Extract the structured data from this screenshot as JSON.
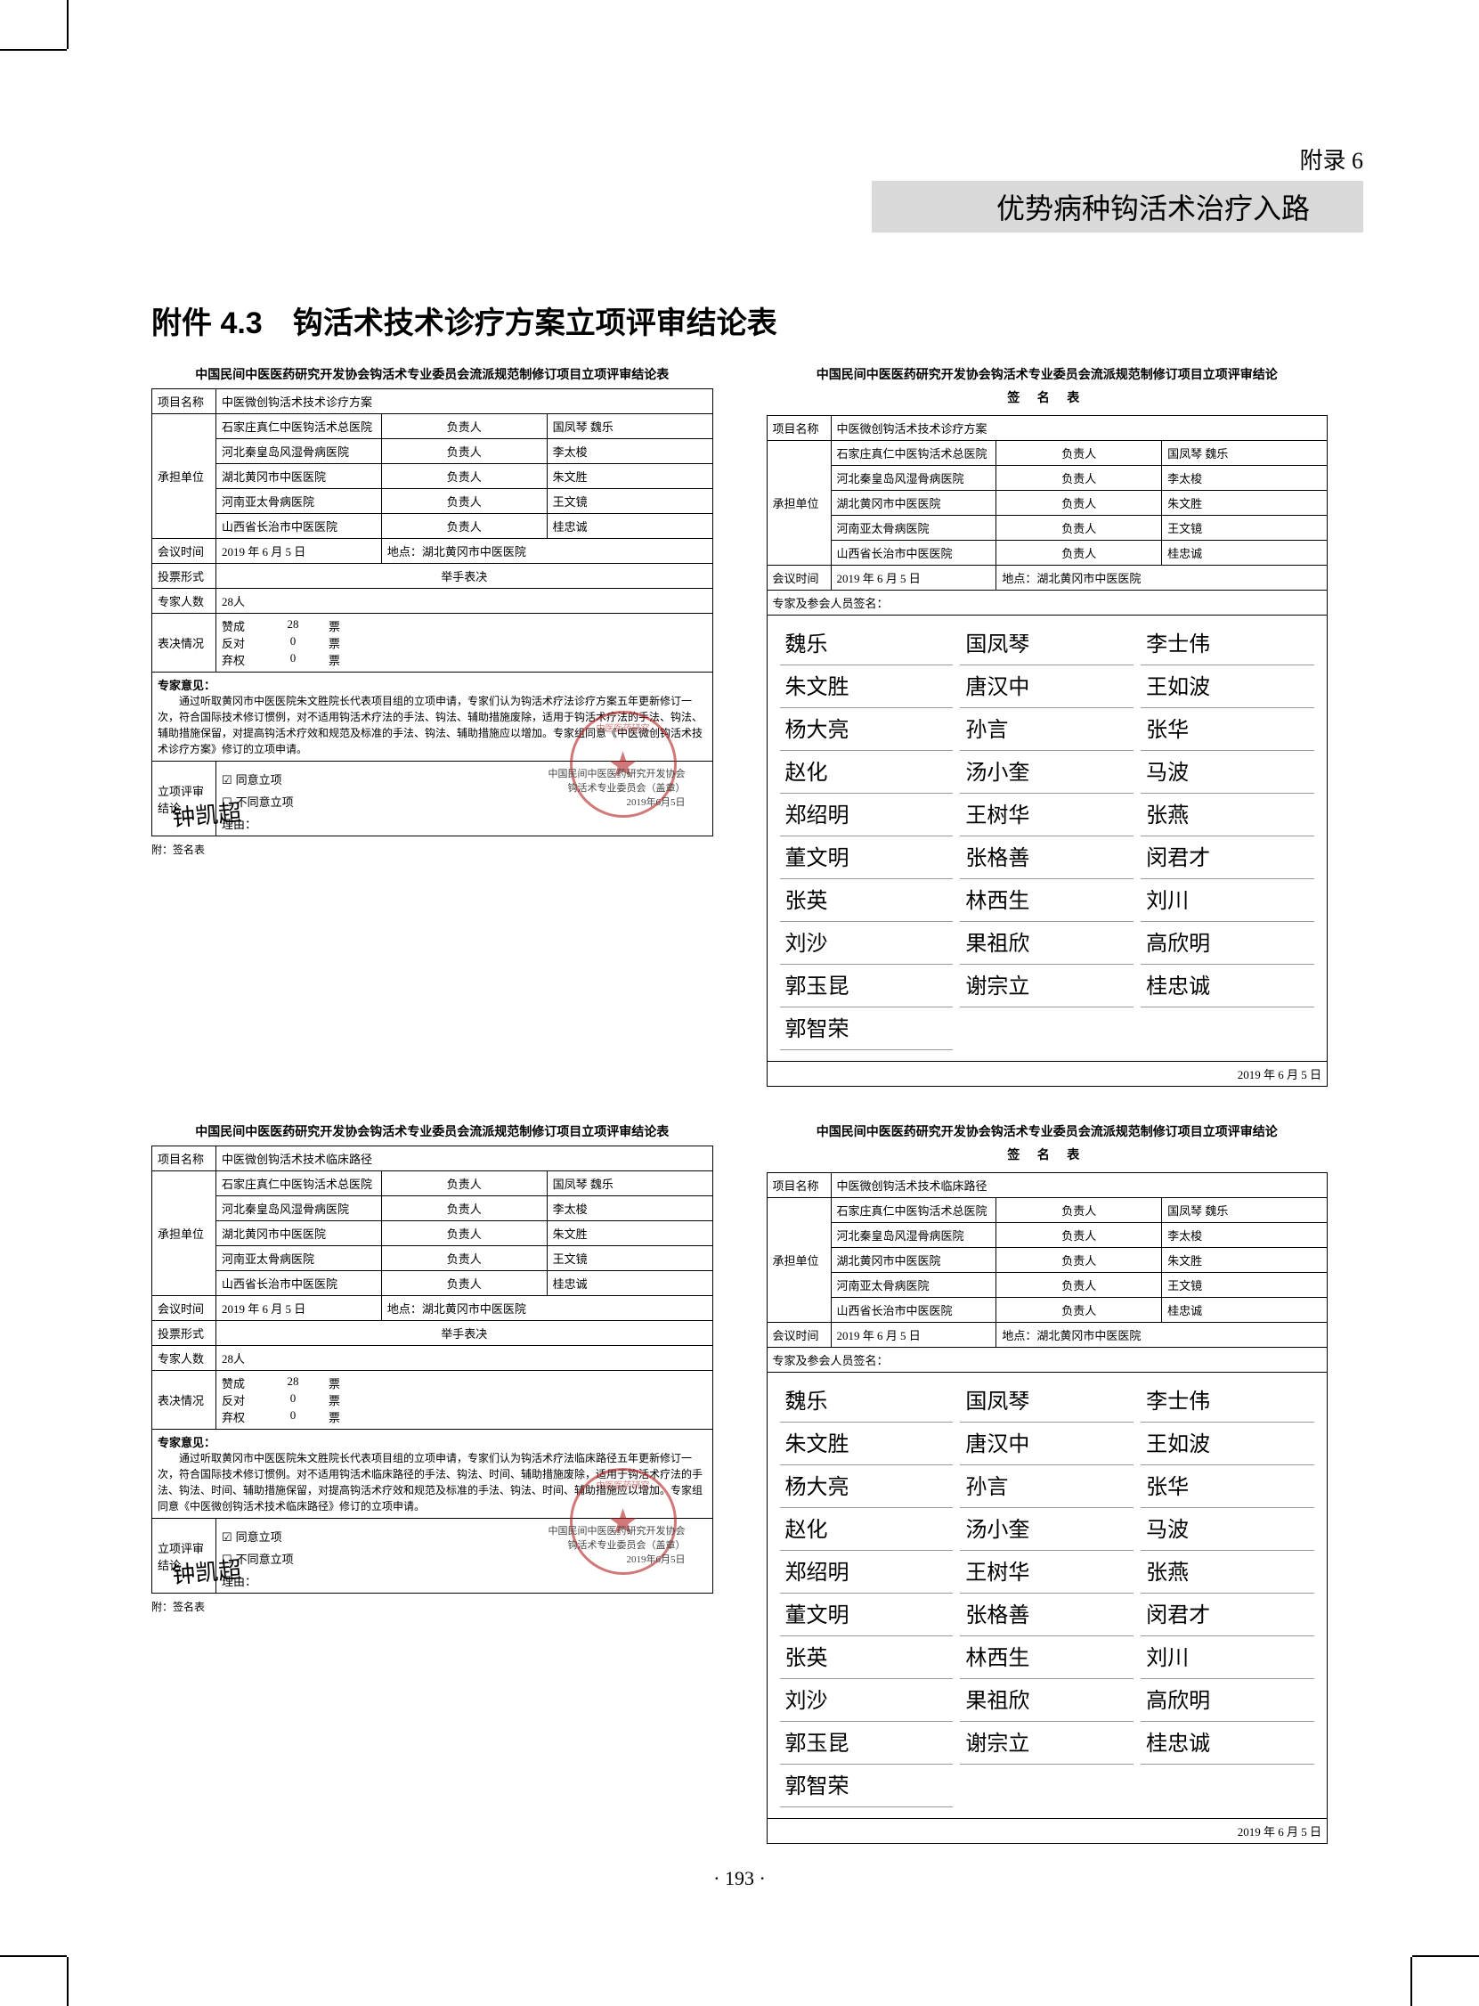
{
  "header": {
    "appendix_num": "附录 6",
    "appendix_title": "优势病种钩活术治疗入路"
  },
  "section_title": "附件 4.3　钩活术技术诊疗方案立项评审结论表",
  "form1": {
    "title": "中国民间中医医药研究开发协会钩活术专业委员会流派规范制修订项目立项评审结论表",
    "labels": {
      "project": "项目名称",
      "units": "承担单位",
      "meeting": "会议时间",
      "votemode": "投票形式",
      "experts": "专家人数",
      "voteresult": "表决情况",
      "opinion": "专家意见：",
      "conclusion": "立项评审结论"
    },
    "project_name": "中医微创钩活术技术诊疗方案",
    "units": [
      {
        "org": "石家庄真仁中医钩活术总医院",
        "pl": "负责人",
        "person": "国凤琴 魏乐"
      },
      {
        "org": "河北秦皇岛风湿骨病医院",
        "pl": "负责人",
        "person": "李太梭"
      },
      {
        "org": "湖北黄冈市中医医院",
        "pl": "负责人",
        "person": "朱文胜"
      },
      {
        "org": "河南亚太骨病医院",
        "pl": "负责人",
        "person": "王文镜"
      },
      {
        "org": "山西省长治市中医医院",
        "pl": "负责人",
        "person": "桂忠诚"
      }
    ],
    "meeting_date": "2019 年 6 月 5 日",
    "meeting_loc_label": "地点：",
    "meeting_loc": "湖北黄冈市中医医院",
    "vote_mode": "举手表决",
    "expert_count": "28人",
    "vote_rows": [
      {
        "k": "赞成",
        "v": "28",
        "u": "票"
      },
      {
        "k": "反对",
        "v": "0",
        "u": "票"
      },
      {
        "k": "弃权",
        "v": "0",
        "u": "票"
      }
    ],
    "opinion": "通过听取黄冈市中医医院朱文胜院长代表项目组的立项申请，专家们认为钩活术疗法诊疗方案五年更新修订一次，符合国际技术修订惯例，对不适用钩活术疗法的手法、钩法、辅助措施废除，适用于钩活术疗法的手法、钩法、辅助措施保留，对提高钩活术疗效和规范及标准的手法、钩法、辅助措施应以增加。专家组同意《中医微创钩活术技术诊疗方案》修订的立项申请。",
    "checkbox_agree": "同意立项",
    "checkbox_disagree": "不同意立项",
    "reason_label": "理由：",
    "org_line1": "中国民间中医医药研究开发协会",
    "org_line2": "钩活术专业委员会（盖章）",
    "org_line3": "2019年6月5日",
    "foot": "附：签名表"
  },
  "form2": {
    "title": "中国民间中医医药研究开发协会钩活术专业委员会流派规范制修订项目立项评审结论",
    "subtitle": "签 名 表",
    "labels": {
      "project": "项目名称",
      "units": "承担单位",
      "meeting": "会议时间",
      "siglabel": "专家及参会人员签名："
    },
    "project_name": "中医微创钩活术技术诊疗方案",
    "units": [
      {
        "org": "石家庄真仁中医钩活术总医院",
        "pl": "负责人",
        "person": "国凤琴 魏乐"
      },
      {
        "org": "河北秦皇岛风湿骨病医院",
        "pl": "负责人",
        "person": "李太梭"
      },
      {
        "org": "湖北黄冈市中医医院",
        "pl": "负责人",
        "person": "朱文胜"
      },
      {
        "org": "河南亚太骨病医院",
        "pl": "负责人",
        "person": "王文镜"
      },
      {
        "org": "山西省长治市中医医院",
        "pl": "负责人",
        "person": "桂忠诚"
      }
    ],
    "meeting_date": "2019 年 6 月 5 日",
    "meeting_loc_label": "地点：",
    "meeting_loc": "湖北黄冈市中医医院",
    "signatures": [
      "魏乐",
      "国凤琴",
      "李士伟",
      "朱文胜",
      "唐汉中",
      "王如波",
      "杨大亮",
      "孙言",
      "张华",
      "赵化",
      "汤小奎",
      "马波",
      "郑绍明",
      "王树华",
      "张燕",
      "董文明",
      "张格善",
      "闵君才",
      "张英",
      "林西生",
      "刘川",
      "刘沙",
      "果祖欣",
      "高欣明",
      "郭玉昆",
      "谢宗立",
      "桂忠诚",
      "郭智荣"
    ],
    "sig_date": "2019 年 6 月 5 日"
  },
  "form3": {
    "title": "中国民间中医医药研究开发协会钩活术专业委员会流派规范制修订项目立项评审结论表",
    "labels": {
      "project": "项目名称",
      "units": "承担单位",
      "meeting": "会议时间",
      "votemode": "投票形式",
      "experts": "专家人数",
      "voteresult": "表决情况",
      "opinion": "专家意见：",
      "conclusion": "立项评审结论"
    },
    "project_name": "中医微创钩活术技术临床路径",
    "units": [
      {
        "org": "石家庄真仁中医钩活术总医院",
        "pl": "负责人",
        "person": "国凤琴 魏乐"
      },
      {
        "org": "河北秦皇岛风湿骨病医院",
        "pl": "负责人",
        "person": "李太梭"
      },
      {
        "org": "湖北黄冈市中医医院",
        "pl": "负责人",
        "person": "朱文胜"
      },
      {
        "org": "河南亚太骨病医院",
        "pl": "负责人",
        "person": "王文镜"
      },
      {
        "org": "山西省长治市中医医院",
        "pl": "负责人",
        "person": "桂忠诚"
      }
    ],
    "meeting_date": "2019 年 6 月 5 日",
    "meeting_loc_label": "地点：",
    "meeting_loc": "湖北黄冈市中医医院",
    "vote_mode": "举手表决",
    "expert_count": "28人",
    "vote_rows": [
      {
        "k": "赞成",
        "v": "28",
        "u": "票"
      },
      {
        "k": "反对",
        "v": "0",
        "u": "票"
      },
      {
        "k": "弃权",
        "v": "0",
        "u": "票"
      }
    ],
    "opinion": "通过听取黄冈市中医医院朱文胜院长代表项目组的立项申请，专家们认为钩活术疗法临床路径五年更新修订一次，符合国际技术修订惯例。对不适用钩活术临床路径的手法、钩法、时间、辅助措施废除，适用于钩活术疗法的手法、钩法、时间、辅助措施保留，对提高钩活术疗效和规范及标准的手法、钩法、时间、辅助措施应以增加。专家组同意《中医微创钩活术技术临床路径》修订的立项申请。",
    "checkbox_agree": "同意立项",
    "checkbox_disagree": "不同意立项",
    "reason_label": "理由：",
    "org_line1": "中国民间中医医药研究开发协会",
    "org_line2": "钩活术专业委员会（盖章）",
    "org_line3": "2019年6月5日",
    "foot": "附：签名表"
  },
  "form4": {
    "title": "中国民间中医医药研究开发协会钩活术专业委员会流派规范制修订项目立项评审结论",
    "subtitle": "签 名 表",
    "labels": {
      "project": "项目名称",
      "units": "承担单位",
      "meeting": "会议时间",
      "siglabel": "专家及参会人员签名："
    },
    "project_name": "中医微创钩活术技术临床路径",
    "units": [
      {
        "org": "石家庄真仁中医钩活术总医院",
        "pl": "负责人",
        "person": "国凤琴 魏乐"
      },
      {
        "org": "河北秦皇岛风湿骨病医院",
        "pl": "负责人",
        "person": "李太梭"
      },
      {
        "org": "湖北黄冈市中医医院",
        "pl": "负责人",
        "person": "朱文胜"
      },
      {
        "org": "河南亚太骨病医院",
        "pl": "负责人",
        "person": "王文镜"
      },
      {
        "org": "山西省长治市中医医院",
        "pl": "负责人",
        "person": "桂忠诚"
      }
    ],
    "meeting_date": "2019 年 6 月 5 日",
    "meeting_loc_label": "地点：",
    "meeting_loc": "湖北黄冈市中医医院",
    "signatures": [
      "魏乐",
      "国凤琴",
      "李士伟",
      "朱文胜",
      "唐汉中",
      "王如波",
      "杨大亮",
      "孙言",
      "张华",
      "赵化",
      "汤小奎",
      "马波",
      "郑绍明",
      "王树华",
      "张燕",
      "董文明",
      "张格善",
      "闵君才",
      "张英",
      "林西生",
      "刘川",
      "刘沙",
      "果祖欣",
      "高欣明",
      "郭玉昆",
      "谢宗立",
      "桂忠诚",
      "郭智荣"
    ],
    "sig_date": "2019 年 6 月 5 日"
  },
  "page_number": "· 193 ·"
}
